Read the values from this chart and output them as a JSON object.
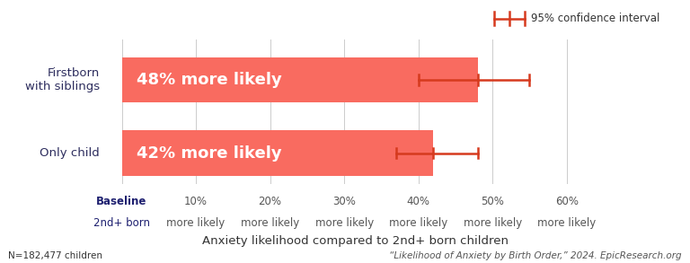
{
  "categories": [
    "Firstborn\nwith siblings",
    "Only child"
  ],
  "values": [
    48,
    42
  ],
  "ci_lower": [
    40,
    37
  ],
  "ci_upper": [
    55,
    48
  ],
  "bar_color": "#F96B60",
  "ci_color": "#D63A1E",
  "bar_labels": [
    "48% more likely",
    "42% more likely"
  ],
  "xlabel": "Anxiety likelihood compared to 2nd+ born children",
  "xlim": [
    -2,
    65
  ],
  "xticks": [
    0,
    10,
    20,
    30,
    40,
    50,
    60
  ],
  "xtick_labels_line1": [
    "Baseline",
    "10%",
    "20%",
    "30%",
    "40%",
    "50%",
    "60%"
  ],
  "xtick_labels_line2": [
    "2nd+ born",
    "more likely",
    "more likely",
    "more likely",
    "more likely",
    "more likely",
    "more likely"
  ],
  "note_left": "N=182,477 children",
  "note_right": "“Likelihood of Anxiety by Birth Order,” 2024. EpicResearch.org",
  "legend_label": "95% confidence interval",
  "legend_color": "#D63A1E",
  "background_color": "#ffffff",
  "bar_label_fontsize": 13,
  "tick_fontsize": 8.5,
  "note_fontsize": 7.5,
  "xlabel_fontsize": 9.5
}
